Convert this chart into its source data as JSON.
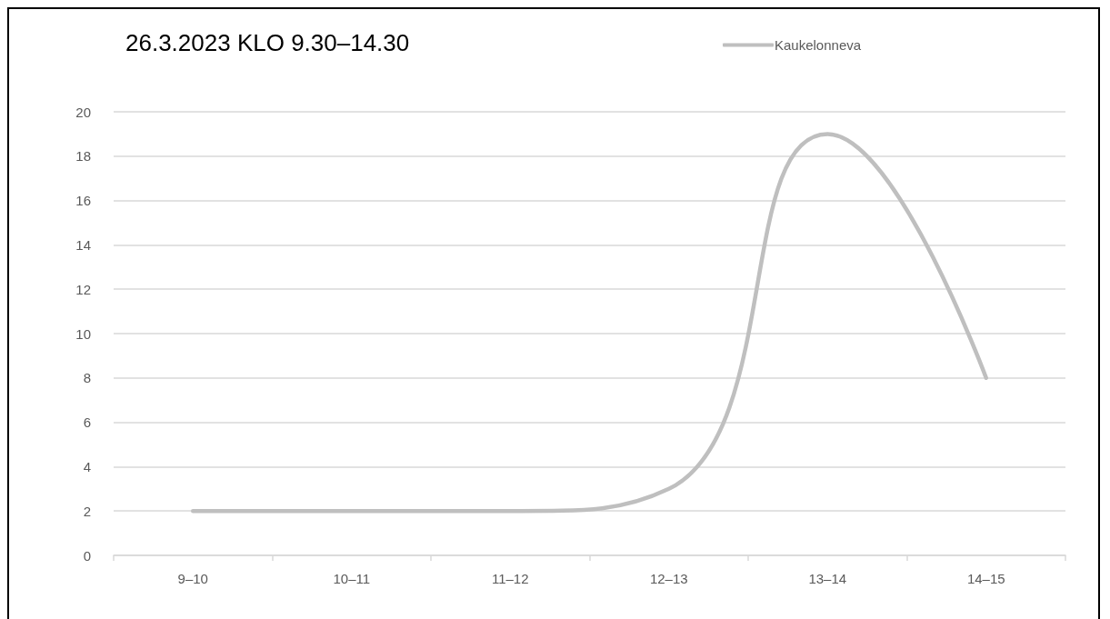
{
  "chart_data": {
    "type": "line",
    "title": "26.3.2023 KLO 9.30–14.30",
    "categories": [
      "9–10",
      "10–11",
      "11–12",
      "12–13",
      "13–14",
      "14–15"
    ],
    "series": [
      {
        "name": "Kaukelonneva",
        "color": "#bfbfbf",
        "values": [
          2,
          2,
          2,
          3,
          19,
          8
        ]
      }
    ],
    "ylim": [
      0,
      20
    ],
    "yticks": [
      0,
      2,
      4,
      6,
      8,
      10,
      12,
      14,
      16,
      18,
      20
    ],
    "grid": "y",
    "legend": "top right",
    "marker": "none",
    "line_style": "solid"
  }
}
